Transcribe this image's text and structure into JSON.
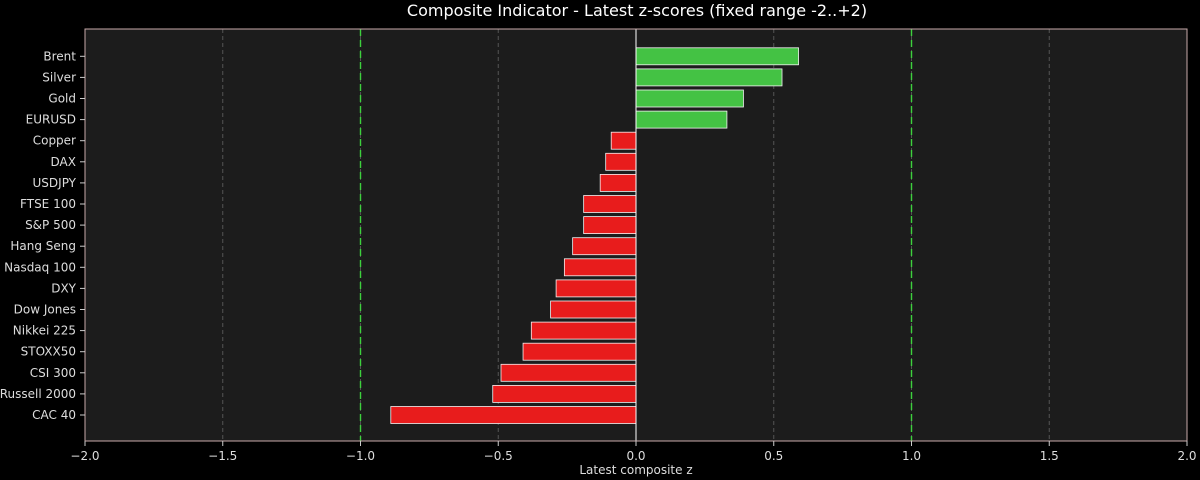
{
  "chart_data": {
    "type": "bar",
    "orientation": "horizontal",
    "title": "Composite Indicator - Latest z-scores (fixed range -2..+2)",
    "xlabel": "Latest composite z",
    "ylabel": "",
    "xlim": [
      -2.0,
      2.0
    ],
    "x_ticks": [
      "−2.0",
      "−1.5",
      "−1.0",
      "−0.5",
      "0.0",
      "0.5",
      "1.0",
      "1.5",
      "2.0"
    ],
    "reference_lines": [
      -1.0,
      1.0
    ],
    "grid": true,
    "categories": [
      "Brent",
      "Silver",
      "Gold",
      "EURUSD",
      "Copper",
      "DAX",
      "USDJPY",
      "FTSE 100",
      "S&P 500",
      "Hang Seng",
      "Nasdaq 100",
      "DXY",
      "Dow Jones",
      "Nikkei 225",
      "STOXX50",
      "CSI 300",
      "Russell 2000",
      "CAC 40"
    ],
    "values": [
      0.59,
      0.53,
      0.39,
      0.33,
      -0.09,
      -0.11,
      -0.13,
      -0.19,
      -0.19,
      -0.23,
      -0.26,
      -0.29,
      -0.31,
      -0.38,
      -0.41,
      -0.49,
      -0.52,
      -0.89
    ],
    "colors": {
      "positive": "#44c244",
      "negative": "#e81c1c",
      "plot_background": "#1c1c1c",
      "page_background": "#000000",
      "reference_line": "#3dd13d",
      "grid": "#555555"
    }
  }
}
